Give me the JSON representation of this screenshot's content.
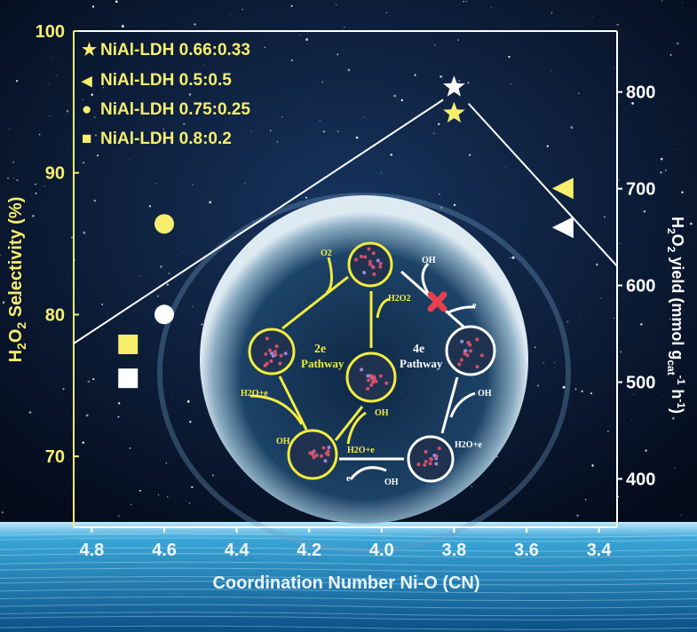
{
  "chart_data": {
    "type": "scatter",
    "xlabel": "Coordination Number Ni-O (CN)",
    "ylabel_left": "H2O2 Selectivity (%)",
    "ylabel_right": "H2O2 yield (mmol gcat-1 h-1)",
    "xlim": [
      4.85,
      3.35
    ],
    "x_reversed": true,
    "ylim_left": [
      65,
      100
    ],
    "ylim_right": [
      350,
      863
    ],
    "x_ticks": [
      "4.8",
      "4.6",
      "4.4",
      "4.2",
      "4.0",
      "3.8",
      "3.6",
      "3.4"
    ],
    "y_left_ticks": [
      "100",
      "90",
      "80",
      "70"
    ],
    "y_right_ticks": [
      "800",
      "700",
      "600",
      "500",
      "400"
    ],
    "legend_placement": "top-left",
    "colors": {
      "selectivity": "#f7ee6e",
      "yield": "#ffffff",
      "axis_left": "#f7ee6e",
      "axis_other": "#ffffff"
    },
    "series": [
      {
        "name": "NiAl-LDH 0.66:0.33",
        "marker": "star",
        "x": 3.8,
        "selectivity": 94.2,
        "yield": 805
      },
      {
        "name": "NiAl-LDH 0.5:0.5",
        "marker": "triangle-left",
        "x": 3.5,
        "selectivity": 88.9,
        "yield": 660
      },
      {
        "name": "NiAl-LDH 0.75:0.25",
        "marker": "circle",
        "x": 4.6,
        "selectivity": 86.4,
        "yield": 570
      },
      {
        "name": "NiAl-LDH 0.8:0.2",
        "marker": "square",
        "x": 4.7,
        "selectivity": 77.9,
        "yield": 504
      }
    ],
    "trend_line_yield": [
      [
        4.85,
        540
      ],
      [
        3.83,
        792
      ],
      [
        3.76,
        788
      ],
      [
        3.35,
        620
      ]
    ]
  },
  "legend": {
    "items": [
      {
        "symbol": "★",
        "label": "NiAl-LDH 0.66:0.33"
      },
      {
        "symbol": "◀",
        "label": "NiAl-LDH 0.5:0.5"
      },
      {
        "symbol": "●",
        "label": "NiAl-LDH 0.75:0.25"
      },
      {
        "symbol": "■",
        "label": "NiAl-LDH 0.8:0.2"
      }
    ]
  },
  "diagram": {
    "o2": "O2",
    "h2o2": "H2O2",
    "path2e_a": "2e",
    "path2e_b": "Pathway",
    "path4e_a": "4e",
    "path4e_b": "Pathway",
    "h2oe_1": "H2O+e",
    "h2oe_2": "H2O+e",
    "h2oe_3": "H2O+e",
    "oh_1": "OH",
    "oh_2": "OH",
    "oh_3": "OH",
    "oh_4": "OH",
    "oh_5": "OH",
    "e_1": "e",
    "e_2": "e",
    "blocked_icon": "cross-icon"
  }
}
